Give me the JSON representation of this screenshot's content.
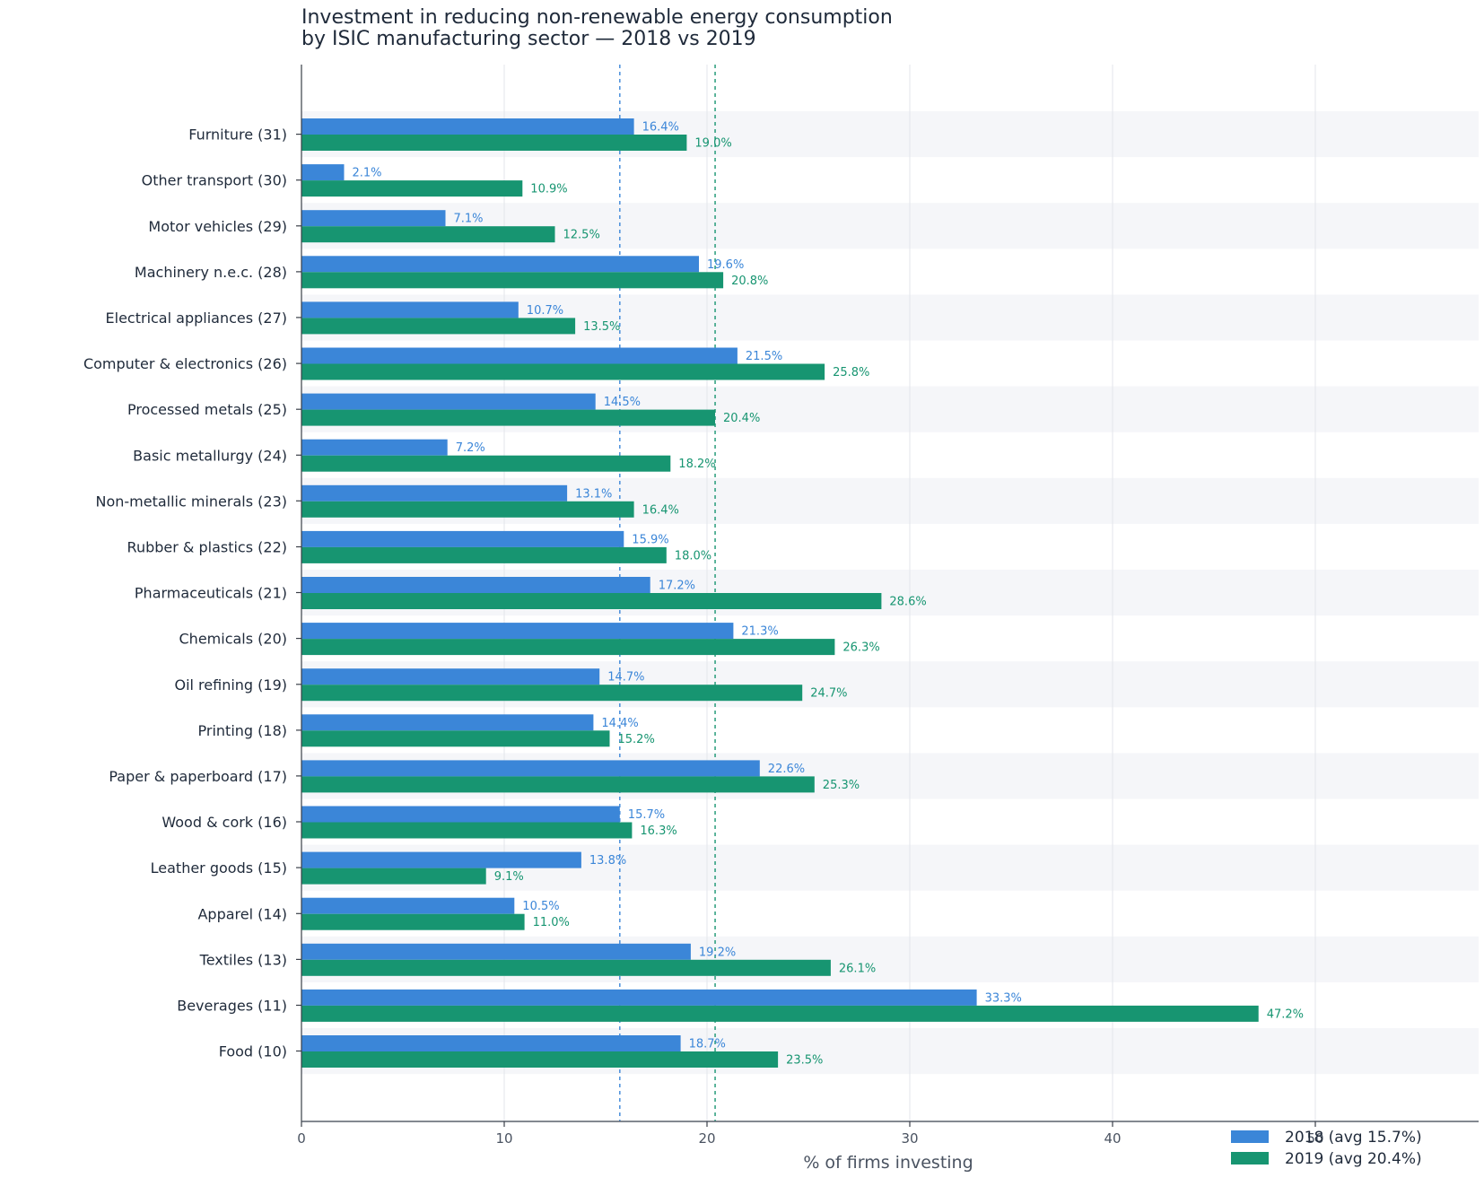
{
  "chart_data": {
    "type": "bar",
    "orientation": "horizontal",
    "title": [
      "Investment in reducing non-renewable energy consumption",
      "by ISIC manufacturing sector — 2018 vs 2019"
    ],
    "xlabel": "% of firms investing",
    "ylabel": "",
    "xlim": [
      0,
      58
    ],
    "xticks": [
      0,
      10,
      20,
      30,
      40,
      50
    ],
    "grid": "vertical",
    "legend_position": "bottom-right",
    "categories": [
      "Furniture (31)",
      "Other transport (30)",
      "Motor vehicles (29)",
      "Machinery n.e.c. (28)",
      "Electrical appliances (27)",
      "Computer & electronics (26)",
      "Processed metals (25)",
      "Basic metallurgy (24)",
      "Non-metallic minerals (23)",
      "Rubber & plastics (22)",
      "Pharmaceuticals (21)",
      "Chemicals (20)",
      "Oil refining (19)",
      "Printing (18)",
      "Paper & paperboard (17)",
      "Wood & cork (16)",
      "Leather goods (15)",
      "Apparel (14)",
      "Textiles (13)",
      "Beverages (11)",
      "Food (10)"
    ],
    "series": [
      {
        "name": "2018  (avg 15.7%)",
        "color": "#3b86d8",
        "label_color": "#3b86d8",
        "average": 15.7,
        "values": [
          16.4,
          2.1,
          7.1,
          19.6,
          10.7,
          21.5,
          14.5,
          7.2,
          13.1,
          15.9,
          17.2,
          21.3,
          14.7,
          14.4,
          22.6,
          15.7,
          13.8,
          10.5,
          19.2,
          33.3,
          18.7
        ],
        "labels": [
          "16.4%",
          "2.1%",
          "7.1%",
          "19.6%",
          "10.7%",
          "21.5%",
          "14.5%",
          "7.2%",
          "13.1%",
          "15.9%",
          "17.2%",
          "21.3%",
          "14.7%",
          "14.4%",
          "22.6%",
          "15.7%",
          "13.8%",
          "10.5%",
          "19.2%",
          "33.3%",
          "18.7%"
        ]
      },
      {
        "name": "2019  (avg 20.4%)",
        "color": "#179571",
        "label_color": "#179571",
        "average": 20.4,
        "values": [
          19.0,
          10.9,
          12.5,
          20.8,
          13.5,
          25.8,
          20.4,
          18.2,
          16.4,
          18.0,
          28.6,
          26.3,
          24.7,
          15.2,
          25.3,
          16.3,
          9.1,
          11.0,
          26.1,
          47.2,
          23.5
        ],
        "labels": [
          "19.0%",
          "10.9%",
          "12.5%",
          "20.8%",
          "13.5%",
          "25.8%",
          "20.4%",
          "18.2%",
          "16.4%",
          "18.0%",
          "28.6%",
          "26.3%",
          "24.7%",
          "15.2%",
          "25.3%",
          "16.3%",
          "9.1%",
          "11.0%",
          "26.1%",
          "47.2%",
          "23.5%"
        ]
      }
    ]
  }
}
